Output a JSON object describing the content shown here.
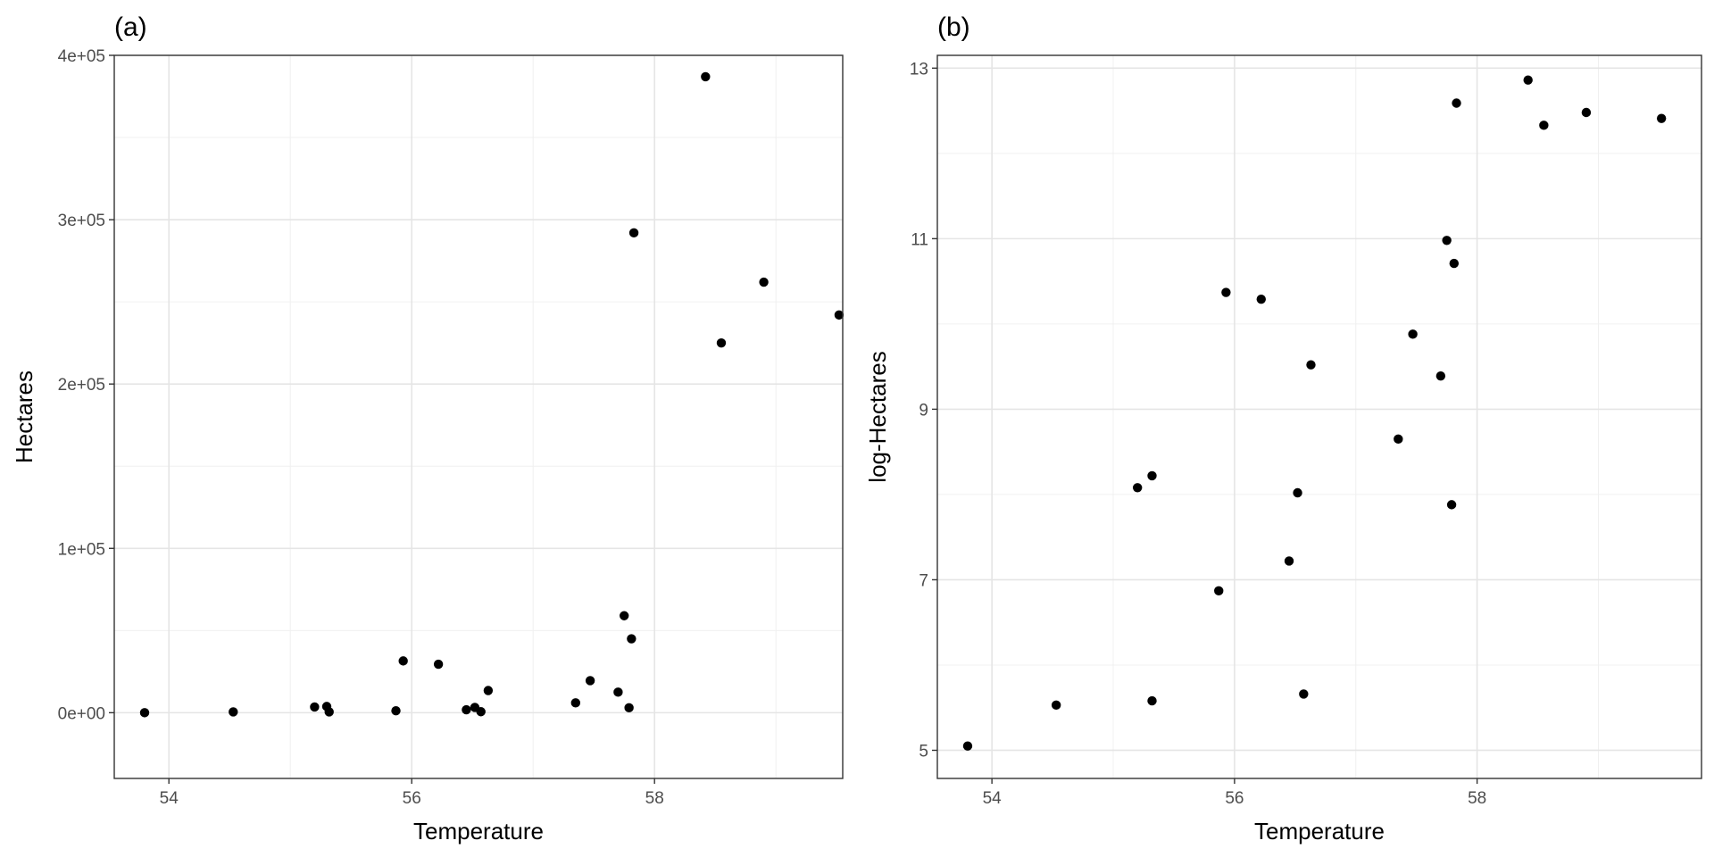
{
  "chart_data": [
    {
      "type": "scatter",
      "tag": "(a)",
      "xlabel": "Temperature",
      "ylabel": "Hectares",
      "xlim": [
        53.55,
        59.55
      ],
      "ylim": [
        -40000,
        400000
      ],
      "x_ticks": [
        54,
        56,
        58
      ],
      "y_ticks": [
        0,
        100000,
        200000,
        300000,
        400000
      ],
      "x_tick_labels": [
        "54",
        "56",
        "58"
      ],
      "y_tick_labels": [
        "0e+00",
        "1e+05",
        "2e+05",
        "3e+05",
        "4e+05"
      ],
      "grid": true,
      "points": [
        {
          "x": 53.8,
          "y": 0
        },
        {
          "x": 54.53,
          "y": 500
        },
        {
          "x": 55.2,
          "y": 3500
        },
        {
          "x": 55.3,
          "y": 3800
        },
        {
          "x": 55.32,
          "y": 500
        },
        {
          "x": 55.87,
          "y": 1200
        },
        {
          "x": 55.93,
          "y": 31500
        },
        {
          "x": 56.22,
          "y": 29500
        },
        {
          "x": 56.45,
          "y": 1800
        },
        {
          "x": 56.52,
          "y": 3200
        },
        {
          "x": 56.57,
          "y": 600
        },
        {
          "x": 56.63,
          "y": 13500
        },
        {
          "x": 57.35,
          "y": 6000
        },
        {
          "x": 57.47,
          "y": 19500
        },
        {
          "x": 57.7,
          "y": 12500
        },
        {
          "x": 57.75,
          "y": 59000
        },
        {
          "x": 57.79,
          "y": 3000
        },
        {
          "x": 57.81,
          "y": 45000
        },
        {
          "x": 57.83,
          "y": 292000
        },
        {
          "x": 58.42,
          "y": 387000
        },
        {
          "x": 58.55,
          "y": 225000
        },
        {
          "x": 58.9,
          "y": 262000
        },
        {
          "x": 59.52,
          "y": 242000
        }
      ]
    },
    {
      "type": "scatter",
      "tag": "(b)",
      "xlabel": "Temperature",
      "ylabel": "log-Hectares",
      "xlim": [
        53.55,
        59.85
      ],
      "ylim": [
        4.67,
        13.15
      ],
      "x_ticks": [
        54,
        56,
        58
      ],
      "y_ticks": [
        5,
        7,
        9,
        11,
        13
      ],
      "x_tick_labels": [
        "54",
        "56",
        "58"
      ],
      "y_tick_labels": [
        "5",
        "7",
        "9",
        "11",
        "13"
      ],
      "grid": true,
      "points": [
        {
          "x": 53.8,
          "y": 5.05
        },
        {
          "x": 54.53,
          "y": 5.53
        },
        {
          "x": 55.2,
          "y": 8.08
        },
        {
          "x": 55.32,
          "y": 8.22
        },
        {
          "x": 55.32,
          "y": 5.58
        },
        {
          "x": 55.87,
          "y": 6.87
        },
        {
          "x": 55.93,
          "y": 10.37
        },
        {
          "x": 56.22,
          "y": 10.29
        },
        {
          "x": 56.45,
          "y": 7.22
        },
        {
          "x": 56.52,
          "y": 8.02
        },
        {
          "x": 56.57,
          "y": 5.66
        },
        {
          "x": 56.63,
          "y": 9.52
        },
        {
          "x": 57.35,
          "y": 8.65
        },
        {
          "x": 57.47,
          "y": 9.88
        },
        {
          "x": 57.7,
          "y": 9.39
        },
        {
          "x": 57.75,
          "y": 10.98
        },
        {
          "x": 57.79,
          "y": 7.88
        },
        {
          "x": 57.81,
          "y": 10.71
        },
        {
          "x": 57.83,
          "y": 12.59
        },
        {
          "x": 58.42,
          "y": 12.86
        },
        {
          "x": 58.55,
          "y": 12.33
        },
        {
          "x": 58.9,
          "y": 12.48
        },
        {
          "x": 59.52,
          "y": 12.41
        }
      ]
    }
  ]
}
